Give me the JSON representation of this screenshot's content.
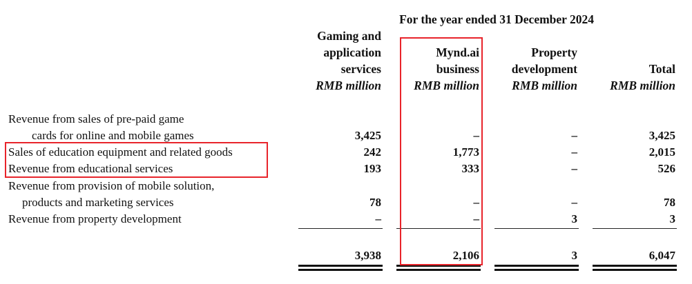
{
  "title": "For the year ended 31 December 2024",
  "columns": [
    {
      "lines": [
        "Gaming and",
        "application",
        "services"
      ],
      "unit": "RMB million"
    },
    {
      "lines": [
        "Mynd.ai",
        "business"
      ],
      "unit": "RMB million"
    },
    {
      "lines": [
        "Property",
        "development"
      ],
      "unit": "RMB million"
    },
    {
      "lines": [
        "Total"
      ],
      "unit": "RMB million"
    }
  ],
  "rows": [
    {
      "label_lines": [
        "Revenue from sales of pre-paid game",
        "cards for online and mobile games"
      ],
      "values": [
        "3,425",
        "–",
        "–",
        "3,425"
      ]
    },
    {
      "label_lines": [
        "Sales of education equipment and related goods"
      ],
      "values": [
        "242",
        "1,773",
        "–",
        "2,015"
      ]
    },
    {
      "label_lines": [
        "Revenue from educational services"
      ],
      "values": [
        "193",
        "333",
        "–",
        "526"
      ]
    },
    {
      "label_lines": [
        "Revenue from provision of mobile solution,",
        "products and marketing services"
      ],
      "values": [
        "78",
        "–",
        "–",
        "78"
      ]
    },
    {
      "label_lines": [
        "Revenue from property development"
      ],
      "values": [
        "–",
        "–",
        "3",
        "3"
      ]
    }
  ],
  "totals": [
    "3,938",
    "2,106",
    "3",
    "6,047"
  ],
  "highlight_color": "#e8232a"
}
